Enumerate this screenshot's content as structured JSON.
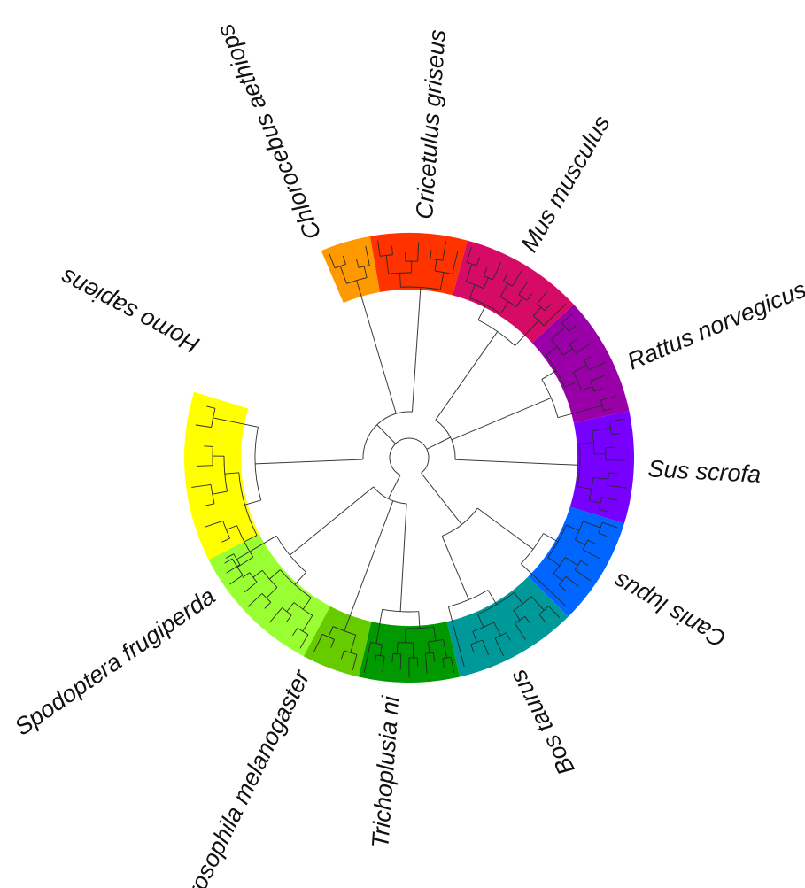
{
  "figure": {
    "type": "circular-phylogenetic-tree",
    "clades": [
      {
        "name": "Homo sapiens",
        "color": "#ffff00",
        "leaves": 10
      },
      {
        "name": "Chlorocebus aethiops",
        "color": "#ff9900",
        "leaves": 4
      },
      {
        "name": "Cricetulus griseus",
        "color": "#ff3300",
        "leaves": 7
      },
      {
        "name": "Mus musculus",
        "color": "#d60b66",
        "leaves": 11
      },
      {
        "name": "Rattus norvegicus",
        "color": "#9900a8",
        "leaves": 10
      },
      {
        "name": "Sus scrofa",
        "color": "#7700ff",
        "leaves": 8
      },
      {
        "name": "Canis lupus",
        "color": "#0066ff",
        "leaves": 9
      },
      {
        "name": "Bos taurus",
        "color": "#009999",
        "leaves": 9
      },
      {
        "name": "Trichoplusia ni",
        "color": "#009900",
        "leaves": 11
      },
      {
        "name": "Drosophila melanogaster",
        "color": "#66cc00",
        "leaves": 4
      },
      {
        "name": "Spodoptera frugiperda",
        "color": "#99ff33",
        "leaves": 10
      }
    ]
  }
}
